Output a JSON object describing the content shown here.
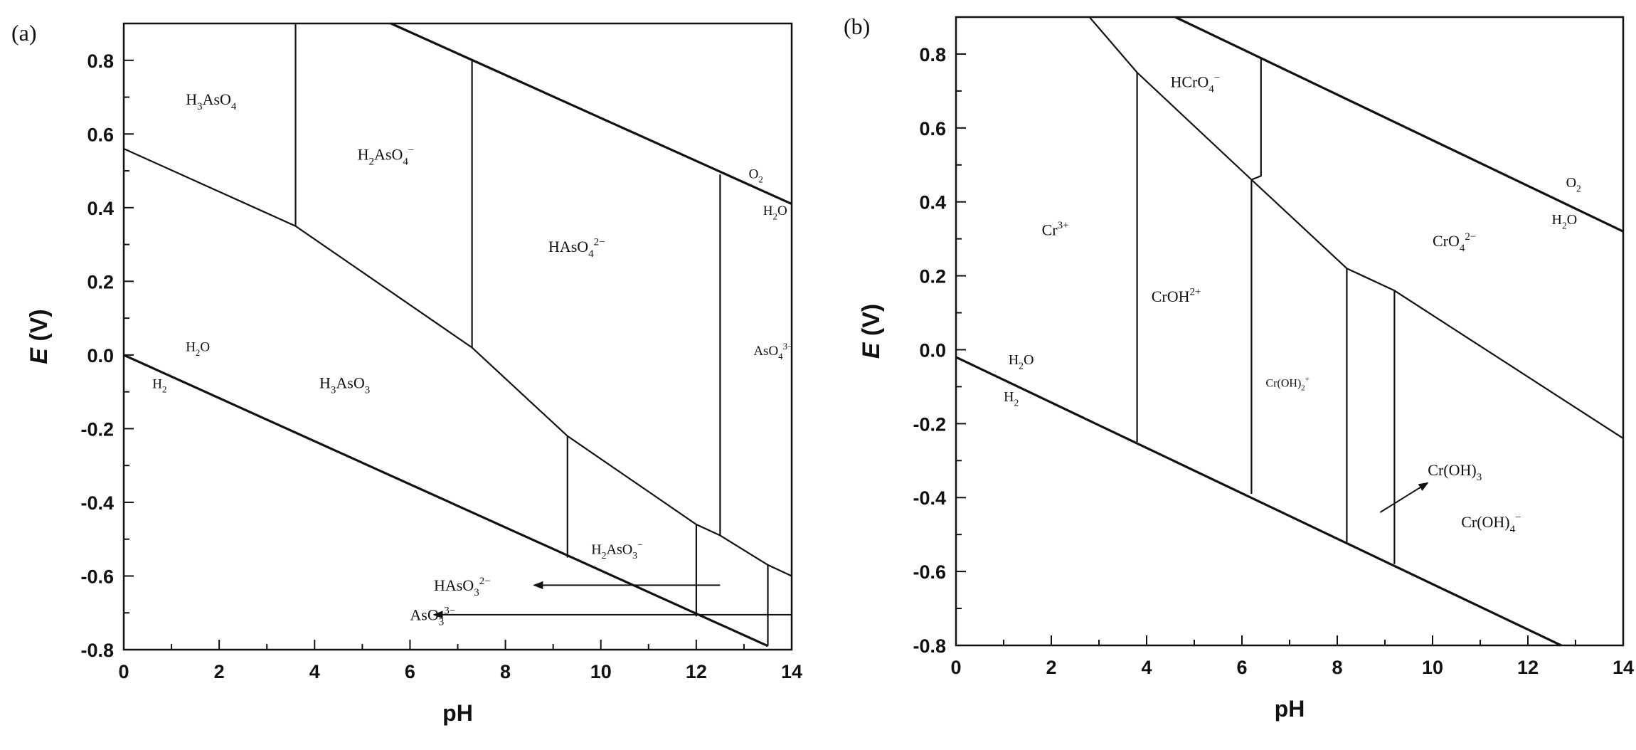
{
  "chart_data": [
    {
      "type": "pourbaix",
      "panel_label": "(a)",
      "xlabel": "pH",
      "ylabel_italic": "E",
      "ylabel_unit": " (V)",
      "xlim": [
        0,
        14
      ],
      "ylim": [
        -0.8,
        0.9
      ],
      "x_ticks": [
        "0",
        "2",
        "4",
        "6",
        "8",
        "10",
        "12",
        "14"
      ],
      "y_ticks": [
        "-0.8",
        "-0.6",
        "-0.4",
        "-0.2",
        "0.0",
        "0.2",
        "0.4",
        "0.6",
        "0.8"
      ],
      "boundaries": [
        {
          "kind": "water",
          "points": [
            [
              0,
              0.0
            ],
            [
              13.5,
              -0.79
            ]
          ]
        },
        {
          "kind": "water",
          "points": [
            [
              5.6,
              0.9
            ],
            [
              14,
              0.41
            ]
          ]
        },
        {
          "kind": "species",
          "points": [
            [
              0,
              0.56
            ],
            [
              3.6,
              0.35
            ],
            [
              7.3,
              0.02
            ],
            [
              9.3,
              -0.22
            ],
            [
              12.0,
              -0.46
            ],
            [
              12.5,
              -0.49
            ],
            [
              13.5,
              -0.57
            ],
            [
              14,
              -0.6
            ]
          ]
        },
        {
          "kind": "species",
          "points": [
            [
              3.6,
              0.9
            ],
            [
              3.6,
              0.35
            ]
          ]
        },
        {
          "kind": "species",
          "points": [
            [
              7.3,
              0.8
            ],
            [
              7.3,
              0.02
            ]
          ]
        },
        {
          "kind": "species",
          "points": [
            [
              12.5,
              0.49
            ],
            [
              12.5,
              -0.49
            ]
          ]
        },
        {
          "kind": "species",
          "points": [
            [
              9.3,
              -0.22
            ],
            [
              9.3,
              -0.55
            ]
          ]
        },
        {
          "kind": "species",
          "points": [
            [
              12.0,
              -0.46
            ],
            [
              12.0,
              -0.71
            ]
          ]
        },
        {
          "kind": "species",
          "points": [
            [
              13.5,
              -0.57
            ],
            [
              13.5,
              -0.79
            ]
          ]
        }
      ],
      "arrows": [
        {
          "from": [
            12.5,
            -0.625
          ],
          "to": [
            8.6,
            -0.625
          ]
        },
        {
          "from": [
            14,
            -0.705
          ],
          "to": [
            6.5,
            -0.705
          ]
        }
      ],
      "labels": [
        {
          "parts": [
            [
              "H",
              ""
            ],
            [
              "3",
              "sub"
            ],
            [
              "AsO",
              ""
            ],
            [
              "4",
              "sub"
            ]
          ],
          "at": [
            1.3,
            0.68
          ],
          "size": 22
        },
        {
          "parts": [
            [
              "H",
              ""
            ],
            [
              "2",
              "sub"
            ],
            [
              "AsO",
              ""
            ],
            [
              "4",
              "sub"
            ],
            [
              "−",
              "sup"
            ]
          ],
          "at": [
            4.9,
            0.53
          ],
          "size": 22
        },
        {
          "parts": [
            [
              "HAsO",
              ""
            ],
            [
              "4",
              "sub"
            ],
            [
              "2−",
              "sup"
            ]
          ],
          "at": [
            8.9,
            0.28
          ],
          "size": 22
        },
        {
          "parts": [
            [
              "H",
              ""
            ],
            [
              "3",
              "sub"
            ],
            [
              "AsO",
              ""
            ],
            [
              "3",
              "sub"
            ]
          ],
          "at": [
            4.1,
            -0.09
          ],
          "size": 22
        },
        {
          "parts": [
            [
              "H",
              ""
            ],
            [
              "2",
              "sub"
            ],
            [
              "AsO",
              ""
            ],
            [
              "3",
              "sub"
            ],
            [
              "−",
              "sup"
            ]
          ],
          "at": [
            9.8,
            -0.54
          ],
          "size": 20
        },
        {
          "parts": [
            [
              "AsO",
              ""
            ],
            [
              "4",
              "sub"
            ],
            [
              "3−",
              "sup"
            ]
          ],
          "at": [
            13.2,
            0.0
          ],
          "size": 19
        },
        {
          "parts": [
            [
              "HAsO",
              ""
            ],
            [
              "3",
              "sub"
            ],
            [
              "2−",
              "sup"
            ]
          ],
          "at": [
            6.5,
            -0.64
          ],
          "size": 22
        },
        {
          "parts": [
            [
              "AsO",
              ""
            ],
            [
              "3",
              "sub"
            ],
            [
              "3−",
              "sup"
            ]
          ],
          "at": [
            6.0,
            -0.72
          ],
          "size": 22
        },
        {
          "parts": [
            [
              "H",
              ""
            ],
            [
              "2",
              "sub"
            ],
            [
              "O",
              ""
            ]
          ],
          "at": [
            1.3,
            0.01
          ],
          "size": 19
        },
        {
          "parts": [
            [
              "H",
              ""
            ],
            [
              "2",
              "sub"
            ]
          ],
          "at": [
            0.6,
            -0.09
          ],
          "size": 19
        },
        {
          "parts": [
            [
              "O",
              ""
            ],
            [
              "2",
              "sub"
            ]
          ],
          "at": [
            13.1,
            0.48
          ],
          "size": 19
        },
        {
          "parts": [
            [
              "H",
              ""
            ],
            [
              "2",
              "sub"
            ],
            [
              "O",
              ""
            ]
          ],
          "at": [
            13.4,
            0.38
          ],
          "size": 19
        }
      ]
    },
    {
      "type": "pourbaix",
      "panel_label": "(b)",
      "xlabel": "pH",
      "ylabel_italic": "E",
      "ylabel_unit": " (V)",
      "xlim": [
        0,
        14
      ],
      "ylim": [
        -0.8,
        0.9
      ],
      "x_ticks": [
        "0",
        "2",
        "4",
        "6",
        "8",
        "10",
        "12",
        "14"
      ],
      "y_ticks": [
        "-0.8",
        "-0.6",
        "-0.4",
        "-0.2",
        "0.0",
        "0.2",
        "0.4",
        "0.6",
        "0.8"
      ],
      "boundaries": [
        {
          "kind": "water",
          "points": [
            [
              0,
              -0.02
            ],
            [
              12.7,
              -0.8
            ]
          ]
        },
        {
          "kind": "water",
          "points": [
            [
              4.6,
              0.9
            ],
            [
              14,
              0.32
            ]
          ]
        },
        {
          "kind": "species",
          "points": [
            [
              2.8,
              0.9
            ],
            [
              3.8,
              0.75
            ],
            [
              6.2,
              0.46
            ],
            [
              8.2,
              0.22
            ],
            [
              9.2,
              0.16
            ],
            [
              14,
              -0.24
            ]
          ]
        },
        {
          "kind": "species",
          "points": [
            [
              3.8,
              0.75
            ],
            [
              3.8,
              -0.25
            ]
          ]
        },
        {
          "kind": "species",
          "points": [
            [
              6.2,
              0.46
            ],
            [
              6.2,
              -0.39
            ]
          ]
        },
        {
          "kind": "species",
          "points": [
            [
              8.2,
              0.22
            ],
            [
              8.2,
              -0.52
            ]
          ]
        },
        {
          "kind": "species",
          "points": [
            [
              9.2,
              0.16
            ],
            [
              9.2,
              -0.58
            ]
          ]
        },
        {
          "kind": "species",
          "points": [
            [
              6.2,
              0.46
            ],
            [
              6.4,
              0.47
            ],
            [
              6.4,
              0.79
            ]
          ]
        }
      ],
      "arrows": [
        {
          "from": [
            8.9,
            -0.44
          ],
          "to": [
            9.9,
            -0.36
          ]
        }
      ],
      "labels": [
        {
          "parts": [
            [
              "HCrO",
              ""
            ],
            [
              "4",
              "sub"
            ],
            [
              "−",
              "sup"
            ]
          ],
          "at": [
            4.5,
            0.71
          ],
          "size": 22
        },
        {
          "parts": [
            [
              "Cr",
              ""
            ],
            [
              "3+",
              "sup"
            ]
          ],
          "at": [
            1.8,
            0.31
          ],
          "size": 22
        },
        {
          "parts": [
            [
              "CrOH",
              ""
            ],
            [
              "2+",
              "sup"
            ]
          ],
          "at": [
            4.1,
            0.13
          ],
          "size": 22
        },
        {
          "parts": [
            [
              "CrO",
              ""
            ],
            [
              "4",
              "sub"
            ],
            [
              "2−",
              "sup"
            ]
          ],
          "at": [
            10.0,
            0.28
          ],
          "size": 22
        },
        {
          "parts": [
            [
              "Cr(OH)",
              ""
            ],
            [
              "2",
              "sub"
            ],
            [
              "+",
              "sup"
            ]
          ],
          "at": [
            6.5,
            -0.1
          ],
          "size": 16
        },
        {
          "parts": [
            [
              "Cr(OH)",
              ""
            ],
            [
              "3",
              "sub"
            ]
          ],
          "at": [
            9.9,
            -0.34
          ],
          "size": 22
        },
        {
          "parts": [
            [
              "Cr(OH)",
              ""
            ],
            [
              "4",
              "sub"
            ],
            [
              "−",
              "sup"
            ]
          ],
          "at": [
            10.6,
            -0.48
          ],
          "size": 22
        },
        {
          "parts": [
            [
              "H",
              ""
            ],
            [
              "2",
              "sub"
            ],
            [
              "O",
              ""
            ]
          ],
          "at": [
            1.1,
            -0.04
          ],
          "size": 20
        },
        {
          "parts": [
            [
              "H",
              ""
            ],
            [
              "2",
              "sub"
            ]
          ],
          "at": [
            1.0,
            -0.14
          ],
          "size": 20
        },
        {
          "parts": [
            [
              "O",
              ""
            ],
            [
              "2",
              "sub"
            ]
          ],
          "at": [
            12.8,
            0.44
          ],
          "size": 20
        },
        {
          "parts": [
            [
              "H",
              ""
            ],
            [
              "2",
              "sub"
            ],
            [
              "O",
              ""
            ]
          ],
          "at": [
            12.5,
            0.34
          ],
          "size": 20
        }
      ]
    }
  ]
}
